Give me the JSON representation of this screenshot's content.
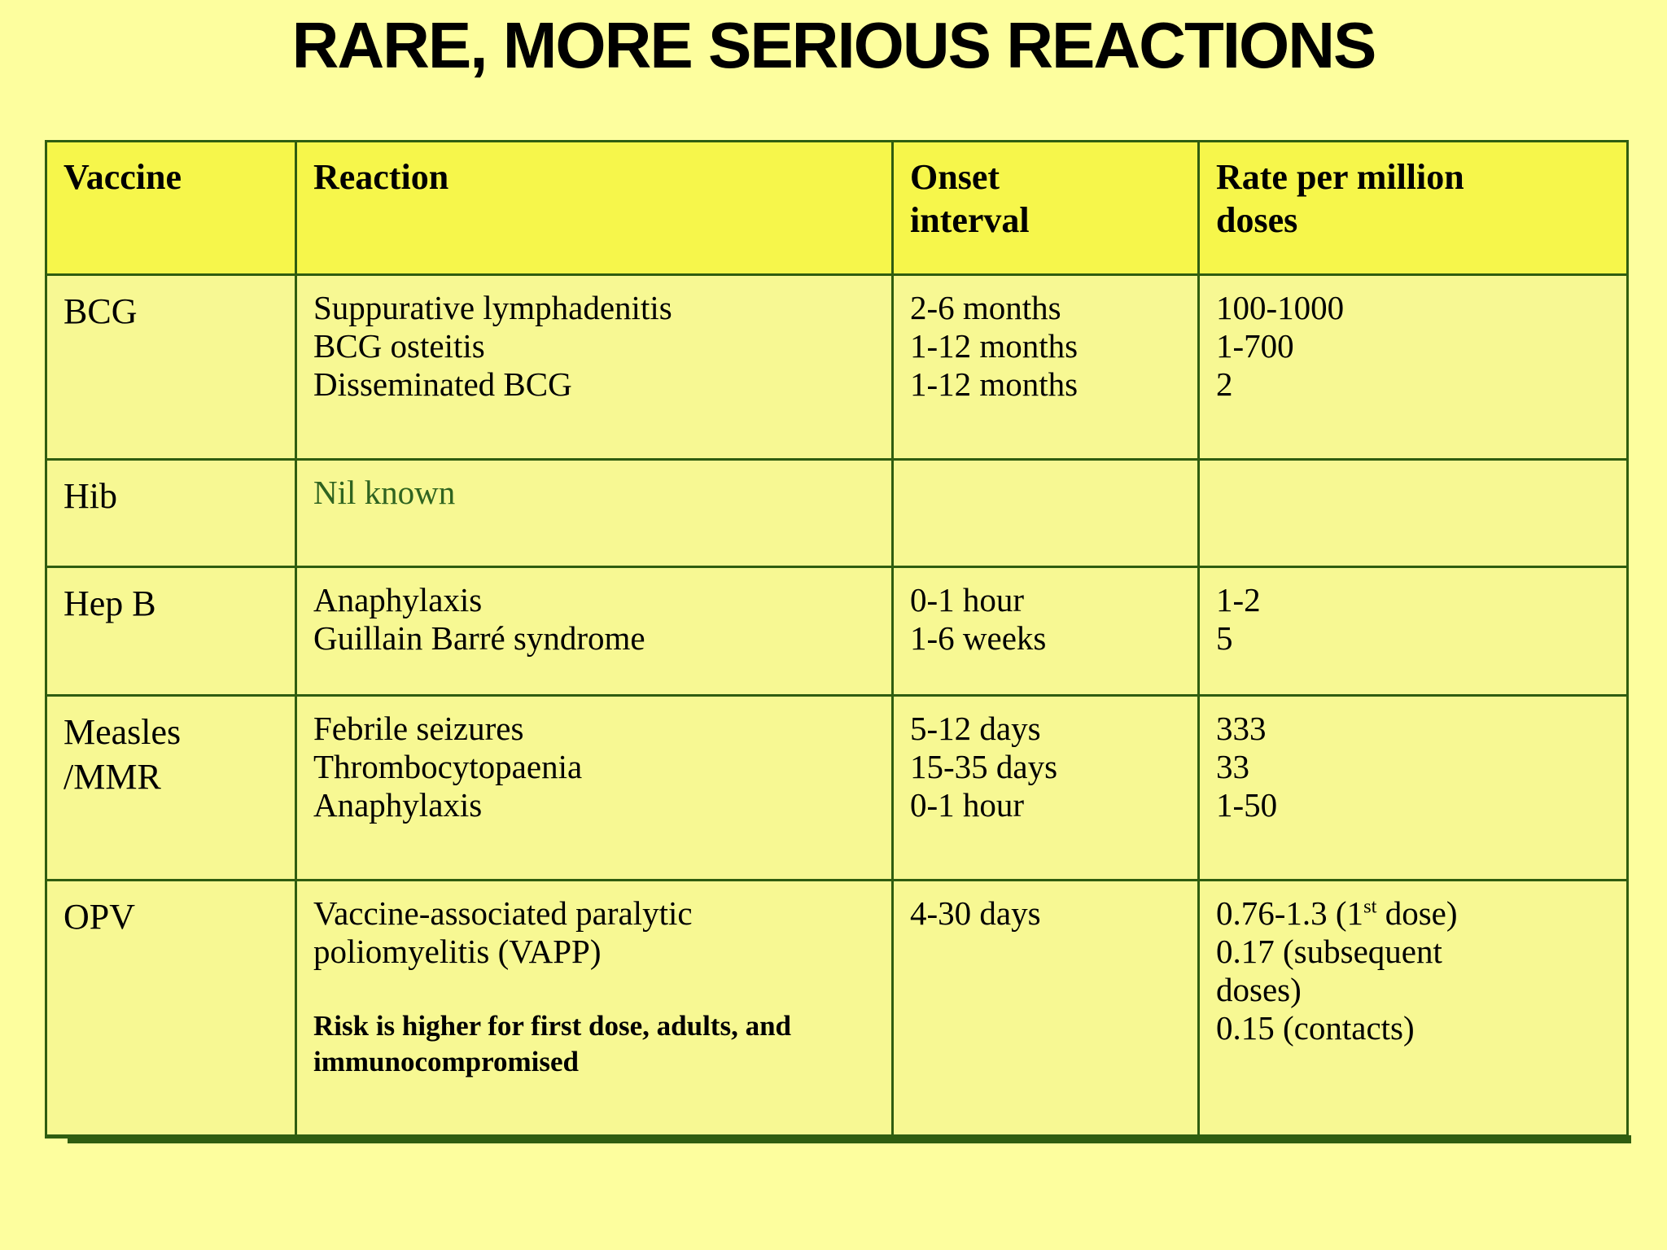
{
  "title": "RARE, MORE SERIOUS REACTIONS",
  "colors": {
    "page_bg": "#fdfe9e",
    "header_bg": "#f6f64b",
    "cell_bg": "#f7f893",
    "border": "#2f5d10",
    "text": "#000000",
    "nil_green": "#2f6320"
  },
  "table": {
    "headers": [
      {
        "lines": [
          "Vaccine"
        ]
      },
      {
        "lines": [
          "Reaction"
        ]
      },
      {
        "lines": [
          "Onset",
          "interval"
        ]
      },
      {
        "lines": [
          "Rate per million",
          "doses"
        ]
      }
    ],
    "rows": [
      {
        "vaccine": [
          "BCG"
        ],
        "reactions": [
          "Suppurative lymphadenitis",
          "BCG osteitis",
          "Disseminated BCG"
        ],
        "onsets": [
          "2-6 months",
          "1-12 months",
          "1-12 months"
        ],
        "rates": [
          "100-1000",
          "1-700",
          "2"
        ]
      },
      {
        "vaccine": [
          "Hib"
        ],
        "reactions": [
          "Nil known"
        ],
        "onsets": [],
        "rates": []
      },
      {
        "vaccine": [
          "Hep B"
        ],
        "reactions": [
          "Anaphylaxis",
          "Guillain Barré syndrome"
        ],
        "onsets": [
          "0-1 hour",
          "1-6 weeks"
        ],
        "rates": [
          "1-2",
          "5"
        ]
      },
      {
        "vaccine": [
          "Measles",
          "/MMR"
        ],
        "reactions": [
          "Febrile seizures",
          "Thrombocytopaenia",
          "Anaphylaxis"
        ],
        "onsets": [
          "5-12 days",
          "15-35 days",
          "0-1 hour"
        ],
        "rates": [
          "333",
          "33",
          "1-50"
        ]
      },
      {
        "vaccine": [
          "OPV"
        ],
        "reactions": [
          "Vaccine-associated paralytic poliomyelitis (VAPP)"
        ],
        "note": "Risk is higher for first dose, adults, and immunocompromised",
        "onsets": [
          "4-30 days"
        ],
        "rate_line1": {
          "pre": "0.76-1.3 (1",
          "sup": "st",
          "post": " dose)"
        },
        "rates_rest": [
          "0.17 (subsequent",
          "doses)",
          "0.15 (contacts)"
        ]
      }
    ]
  }
}
